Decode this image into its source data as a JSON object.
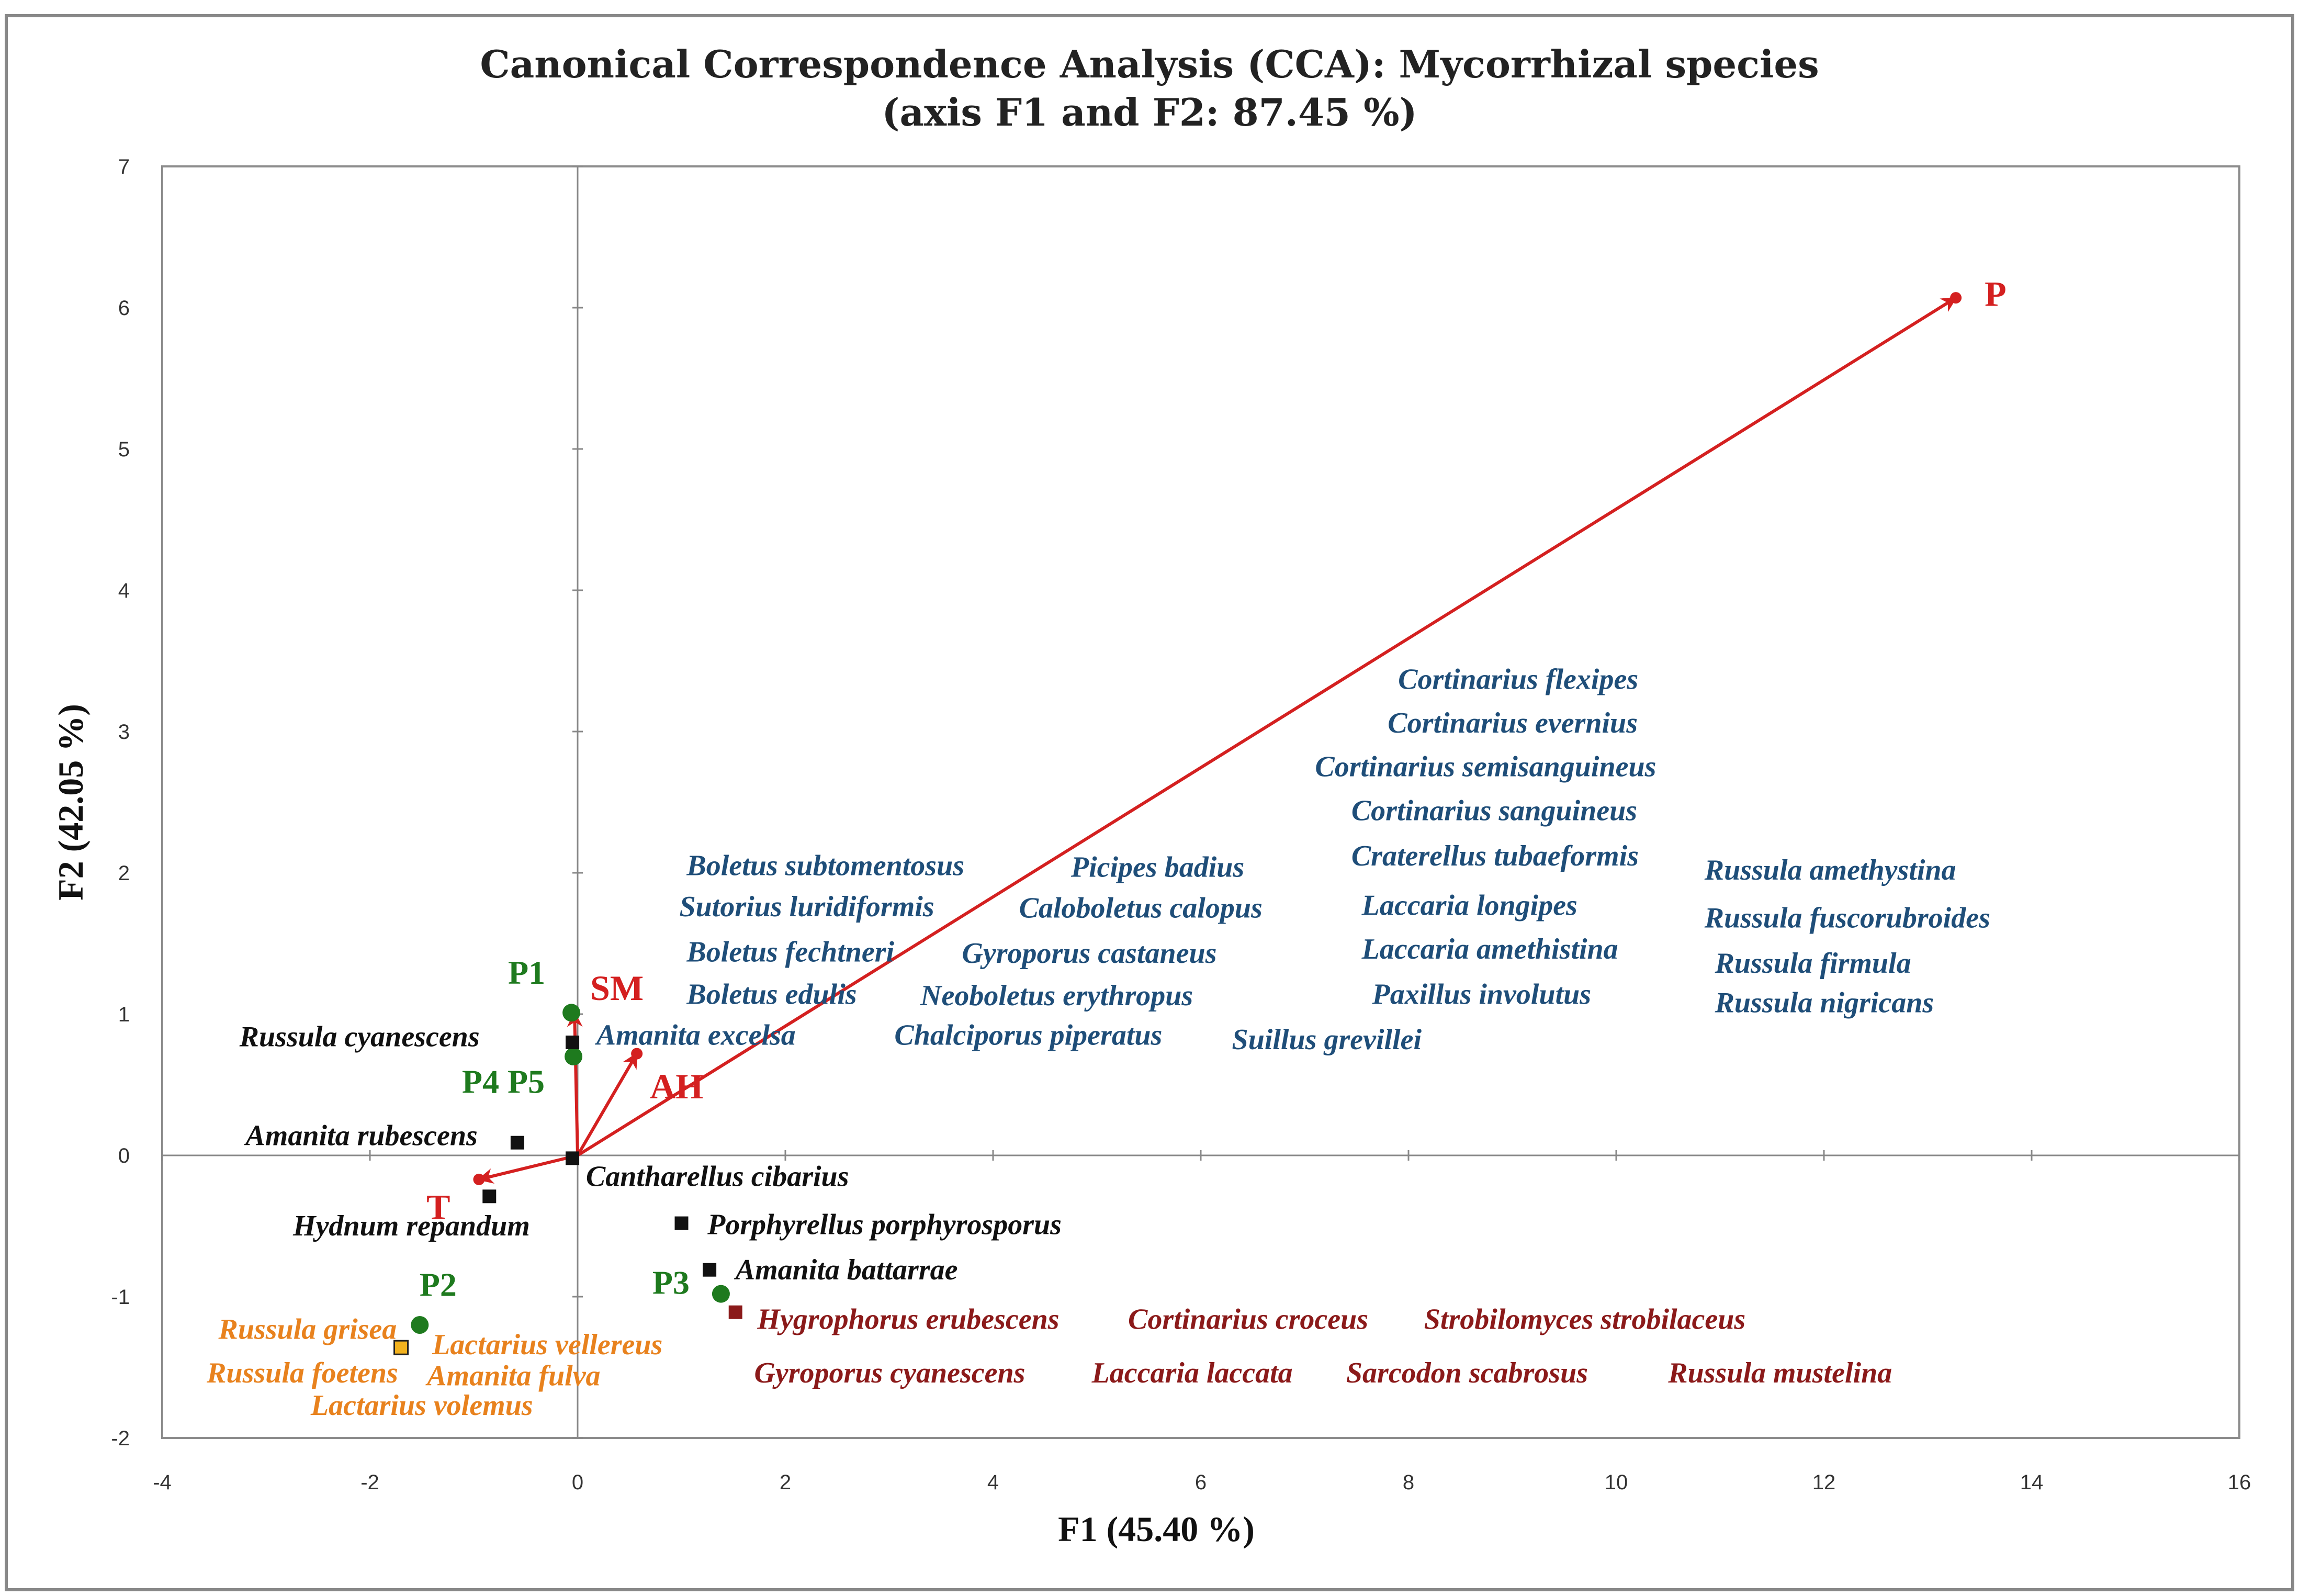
{
  "chart_data": {
    "type": "scatter",
    "title_line1": "Canonical Correspondence Analysis (CCA): Mycorrhizal species",
    "title_line2": "(axis F1 and F2: 87.45 %)",
    "xlabel": "F1 (45.40 %)",
    "ylabel": "F2 (42.05 %)",
    "xlim": [
      -4,
      16
    ],
    "ylim": [
      -2,
      7
    ],
    "xticks": [
      -4,
      -2,
      0,
      2,
      4,
      6,
      8,
      10,
      12,
      14,
      16
    ],
    "yticks": [
      -2,
      -1,
      0,
      1,
      2,
      3,
      4,
      5,
      6,
      7
    ],
    "colors": {
      "variables": "#d42020",
      "sites": "#1e7a1e",
      "black_group": "#111111",
      "blue_group": "#1f4e79",
      "orange_group": "#e8821e",
      "darkred_group": "#8b1a1a"
    },
    "variables": [
      {
        "name": "P",
        "x": 13.27,
        "y": 6.07
      },
      {
        "name": "SM",
        "x": -0.03,
        "y": 1.01
      },
      {
        "name": "AH",
        "x": 0.57,
        "y": 0.72
      },
      {
        "name": "T",
        "x": -0.95,
        "y": -0.17
      }
    ],
    "sites": [
      {
        "name": "P1",
        "x": -0.06,
        "y": 1.01
      },
      {
        "name": "P4 P5",
        "x": -0.04,
        "y": 0.7
      },
      {
        "name": "P2",
        "x": -1.52,
        "y": -1.2
      },
      {
        "name": "P3",
        "x": 1.38,
        "y": -0.98
      }
    ],
    "species_points": [
      {
        "name": "Russula cyanescens",
        "x": -0.05,
        "y": 0.8,
        "group": "black_group"
      },
      {
        "name": "Amanita rubescens",
        "x": -0.58,
        "y": 0.09,
        "group": "black_group"
      },
      {
        "name": "Cantharellus cibarius",
        "x": -0.05,
        "y": -0.02,
        "group": "black_group"
      },
      {
        "name": "Hydnum repandum",
        "x": -0.85,
        "y": -0.29,
        "group": "black_group"
      },
      {
        "name": "Porphyrellus porphyrosporus",
        "x": 1.0,
        "y": -0.48,
        "group": "black_group"
      },
      {
        "name": "Amanita battarrae",
        "x": 1.27,
        "y": -0.81,
        "group": "black_group"
      },
      {
        "name": "Hygrophorus erubescens",
        "x": 1.52,
        "y": -1.11,
        "group": "darkred_group"
      },
      {
        "name": "Russula grisea",
        "x": -1.7,
        "y": -1.36,
        "group": "orange_group"
      }
    ],
    "species_labels": {
      "black_group": [
        {
          "name": "Russula cyanescens",
          "x": -2.1,
          "y": 0.82,
          "anchor": "middle"
        },
        {
          "name": "Amanita rubescens",
          "x": -2.08,
          "y": 0.12,
          "anchor": "middle"
        },
        {
          "name": "Cantharellus cibarius",
          "x": 0.08,
          "y": -0.17,
          "anchor": "start"
        },
        {
          "name": "Hydnum repandum",
          "x": -1.6,
          "y": -0.52,
          "anchor": "middle"
        },
        {
          "name": "Porphyrellus porphyrosporus",
          "x": 1.25,
          "y": -0.51,
          "anchor": "start"
        },
        {
          "name": "Amanita battarrae",
          "x": 1.52,
          "y": -0.83,
          "anchor": "start"
        }
      ],
      "blue_group": [
        {
          "name": "Amanita excelsa",
          "x": 0.18,
          "y": 0.83,
          "anchor": "start"
        },
        {
          "name": "Boletus subtomentosus",
          "x": 1.05,
          "y": 2.03,
          "anchor": "start"
        },
        {
          "name": "Sutorius luridiformis",
          "x": 0.98,
          "y": 1.74,
          "anchor": "start"
        },
        {
          "name": "Boletus fechtneri",
          "x": 1.05,
          "y": 1.42,
          "anchor": "start"
        },
        {
          "name": "Boletus edulis",
          "x": 1.05,
          "y": 1.12,
          "anchor": "start"
        },
        {
          "name": "Picipes badius",
          "x": 4.75,
          "y": 2.02,
          "anchor": "start"
        },
        {
          "name": "Caloboletus calopus",
          "x": 4.25,
          "y": 1.73,
          "anchor": "start"
        },
        {
          "name": "Gyroporus castaneus",
          "x": 3.7,
          "y": 1.41,
          "anchor": "start"
        },
        {
          "name": "Neoboletus erythropus",
          "x": 3.3,
          "y": 1.11,
          "anchor": "start"
        },
        {
          "name": "Chalciporus piperatus",
          "x": 3.05,
          "y": 0.83,
          "anchor": "start"
        },
        {
          "name": "Suillus grevillei",
          "x": 6.3,
          "y": 0.8,
          "anchor": "start"
        },
        {
          "name": "Cortinarius flexipes",
          "x": 7.9,
          "y": 3.35,
          "anchor": "start"
        },
        {
          "name": "Cortinarius evernius",
          "x": 7.8,
          "y": 3.04,
          "anchor": "start"
        },
        {
          "name": "Cortinarius semisanguineus",
          "x": 7.1,
          "y": 2.73,
          "anchor": "start"
        },
        {
          "name": "Cortinarius sanguineus",
          "x": 7.45,
          "y": 2.42,
          "anchor": "start"
        },
        {
          "name": "Craterellus tubaeformis",
          "x": 7.45,
          "y": 2.1,
          "anchor": "start"
        },
        {
          "name": "Laccaria longipes",
          "x": 7.55,
          "y": 1.75,
          "anchor": "start"
        },
        {
          "name": "Laccaria amethistina",
          "x": 7.55,
          "y": 1.44,
          "anchor": "start"
        },
        {
          "name": "Paxillus involutus",
          "x": 7.65,
          "y": 1.12,
          "anchor": "start"
        },
        {
          "name": "Russula amethystina",
          "x": 10.85,
          "y": 2.0,
          "anchor": "start"
        },
        {
          "name": "Russula fuscorubroides",
          "x": 10.85,
          "y": 1.66,
          "anchor": "start"
        },
        {
          "name": "Russula firmula",
          "x": 10.95,
          "y": 1.34,
          "anchor": "start"
        },
        {
          "name": "Russula nigricans",
          "x": 10.95,
          "y": 1.06,
          "anchor": "start"
        }
      ],
      "orange_group": [
        {
          "name": "Russula grisea",
          "x": -2.6,
          "y": -1.25,
          "anchor": "middle"
        },
        {
          "name": "Russula foetens",
          "x": -2.65,
          "y": -1.56,
          "anchor": "middle"
        },
        {
          "name": "Lactarius vellereus",
          "x": -1.4,
          "y": -1.36,
          "anchor": "start"
        },
        {
          "name": "Amanita fulva",
          "x": -1.45,
          "y": -1.58,
          "anchor": "start"
        },
        {
          "name": "Lactarius volemus",
          "x": -1.5,
          "y": -1.79,
          "anchor": "middle"
        }
      ],
      "darkred_group": [
        {
          "name": "Hygrophorus erubescens",
          "x": 1.73,
          "y": -1.18,
          "anchor": "start"
        },
        {
          "name": "Cortinarius croceus",
          "x": 5.3,
          "y": -1.18,
          "anchor": "start"
        },
        {
          "name": "Strobilomyces strobilaceus",
          "x": 8.15,
          "y": -1.18,
          "anchor": "start"
        },
        {
          "name": "Gyroporus cyanescens",
          "x": 1.7,
          "y": -1.56,
          "anchor": "start"
        },
        {
          "name": "Laccaria laccata",
          "x": 4.95,
          "y": -1.56,
          "anchor": "start"
        },
        {
          "name": "Sarcodon scabrosus",
          "x": 7.4,
          "y": -1.56,
          "anchor": "start"
        },
        {
          "name": "Russula mustelina",
          "x": 10.5,
          "y": -1.56,
          "anchor": "start"
        }
      ]
    }
  }
}
